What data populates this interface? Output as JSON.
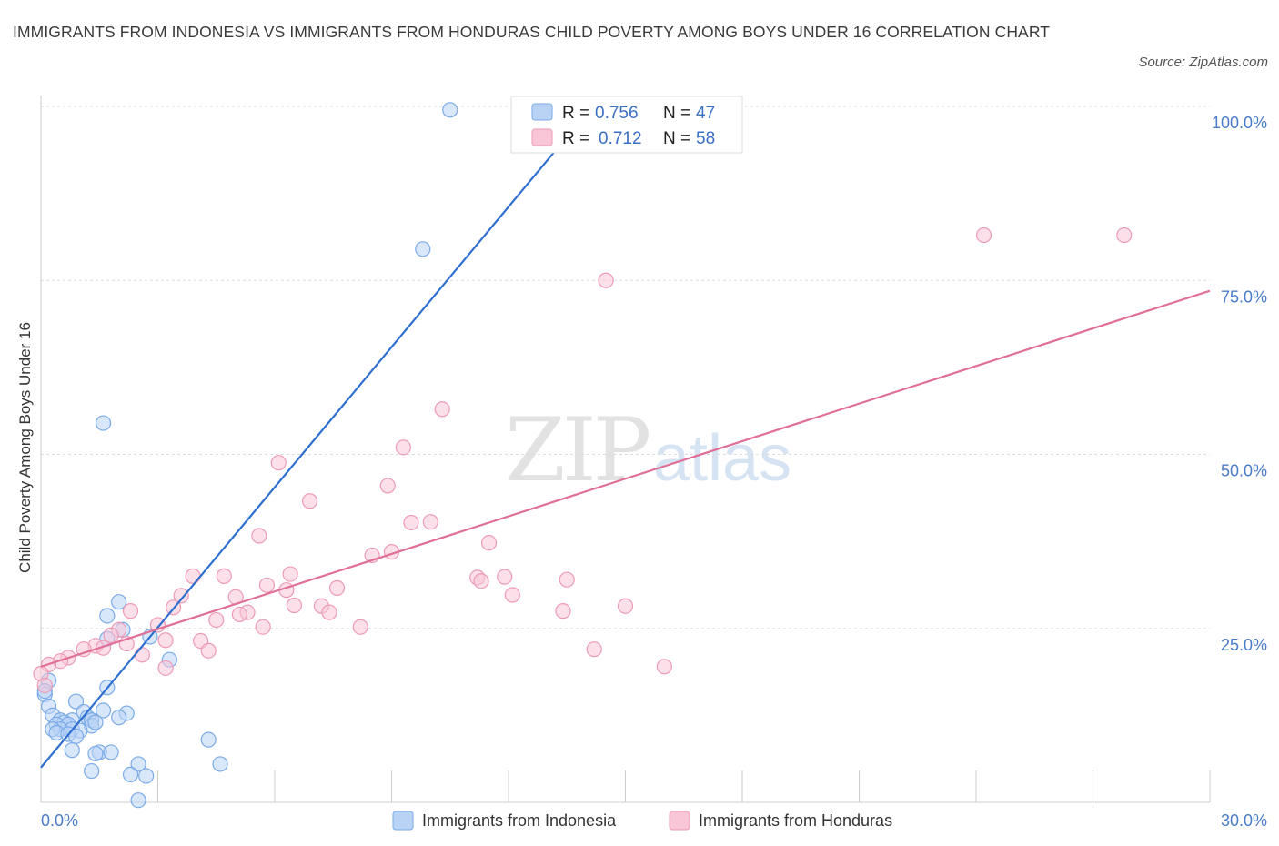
{
  "title": "IMMIGRANTS FROM INDONESIA VS IMMIGRANTS FROM HONDURAS CHILD POVERTY AMONG BOYS UNDER 16 CORRELATION CHART",
  "source": "Source: ZipAtlas.com",
  "watermark": {
    "zip": "ZIP",
    "atlas": "atlas"
  },
  "colors": {
    "indonesia": "#7aaae8",
    "indonesia_fill": "#b9d3f5",
    "indonesia_line": "#2f6fd0",
    "honduras": "#ee9ab8",
    "honduras_fill": "#f8c6d7",
    "honduras_line": "#e07098"
  },
  "legend": {
    "indonesia": {
      "r_label": "R = ",
      "r_value": "0.756",
      "n_label": "N = ",
      "n_value": "47"
    },
    "honduras": {
      "r_label": "R = ",
      "r_value": "0.712",
      "n_label": "N = ",
      "n_value": "58"
    }
  },
  "bottom_legend": {
    "indonesia": "Immigrants from Indonesia",
    "honduras": "Immigrants from Honduras"
  },
  "chart_data": {
    "type": "scatter",
    "ylabel": "Child Poverty Among Boys Under 16",
    "xlim": [
      0,
      30
    ],
    "ylim": [
      0,
      100
    ],
    "x_tick_labels": [
      "0.0%",
      "30.0%"
    ],
    "y_ticks": [
      25,
      50,
      75,
      100
    ],
    "y_tick_labels": [
      "25.0%",
      "50.0%",
      "75.0%",
      "100.0%"
    ],
    "grid": true,
    "legend_placement": "top-center",
    "series": [
      {
        "name": "Immigrants from Indonesia",
        "r": 0.756,
        "n": 47,
        "trend": {
          "x0": 0,
          "y0": 5.0,
          "x1": 14.0,
          "y1": 99.0
        },
        "points": [
          [
            10.5,
            99.5
          ],
          [
            9.8,
            79.5
          ],
          [
            1.6,
            54.5
          ],
          [
            2.0,
            28.8
          ],
          [
            1.7,
            26.8
          ],
          [
            2.1,
            24.8
          ],
          [
            1.7,
            23.5
          ],
          [
            2.8,
            23.8
          ],
          [
            3.3,
            20.5
          ],
          [
            0.2,
            17.5
          ],
          [
            1.7,
            16.5
          ],
          [
            0.1,
            15.5
          ],
          [
            0.2,
            13.8
          ],
          [
            0.9,
            14.5
          ],
          [
            1.6,
            13.2
          ],
          [
            1.1,
            13.0
          ],
          [
            2.2,
            12.8
          ],
          [
            0.3,
            12.5
          ],
          [
            1.2,
            12.2
          ],
          [
            0.8,
            11.8
          ],
          [
            0.5,
            11.8
          ],
          [
            0.6,
            11.5
          ],
          [
            0.4,
            11.2
          ],
          [
            0.7,
            11.2
          ],
          [
            1.3,
            11.8
          ],
          [
            2.0,
            12.2
          ],
          [
            1.3,
            11.0
          ],
          [
            0.5,
            10.5
          ],
          [
            0.8,
            10.5
          ],
          [
            1.0,
            10.3
          ],
          [
            0.3,
            10.5
          ],
          [
            0.4,
            10.0
          ],
          [
            1.4,
            11.5
          ],
          [
            0.7,
            9.8
          ],
          [
            0.9,
            9.5
          ],
          [
            4.3,
            9.0
          ],
          [
            0.8,
            7.5
          ],
          [
            1.5,
            7.2
          ],
          [
            1.8,
            7.2
          ],
          [
            1.4,
            7.0
          ],
          [
            2.5,
            5.5
          ],
          [
            4.6,
            5.5
          ],
          [
            1.3,
            4.5
          ],
          [
            2.3,
            4.0
          ],
          [
            2.7,
            3.8
          ],
          [
            2.5,
            0.3
          ],
          [
            0.1,
            16.0
          ]
        ]
      },
      {
        "name": "Immigrants from Honduras",
        "r": 0.712,
        "n": 58,
        "trend": {
          "x0": 0,
          "y0": 19.5,
          "x1": 30,
          "y1": 73.5
        },
        "points": [
          [
            24.2,
            81.5
          ],
          [
            27.8,
            81.5
          ],
          [
            14.5,
            75.0
          ],
          [
            10.3,
            56.5
          ],
          [
            9.3,
            51.0
          ],
          [
            6.1,
            48.8
          ],
          [
            8.9,
            45.5
          ],
          [
            6.9,
            43.3
          ],
          [
            9.5,
            40.2
          ],
          [
            10.0,
            40.3
          ],
          [
            5.6,
            38.3
          ],
          [
            11.5,
            37.3
          ],
          [
            9.0,
            36.0
          ],
          [
            8.5,
            35.5
          ],
          [
            3.9,
            32.5
          ],
          [
            4.7,
            32.5
          ],
          [
            6.4,
            32.8
          ],
          [
            11.2,
            32.3
          ],
          [
            11.3,
            31.8
          ],
          [
            11.9,
            32.4
          ],
          [
            13.5,
            32.0
          ],
          [
            5.8,
            31.2
          ],
          [
            7.6,
            30.8
          ],
          [
            6.3,
            30.5
          ],
          [
            12.1,
            29.8
          ],
          [
            3.6,
            29.7
          ],
          [
            5.0,
            29.5
          ],
          [
            6.5,
            28.3
          ],
          [
            7.2,
            28.2
          ],
          [
            7.4,
            27.3
          ],
          [
            3.4,
            28.0
          ],
          [
            2.3,
            27.5
          ],
          [
            5.3,
            27.3
          ],
          [
            5.1,
            27.0
          ],
          [
            13.4,
            27.5
          ],
          [
            15.0,
            28.2
          ],
          [
            4.5,
            26.2
          ],
          [
            3.0,
            25.5
          ],
          [
            5.7,
            25.2
          ],
          [
            8.2,
            25.2
          ],
          [
            2.0,
            24.8
          ],
          [
            1.8,
            24.0
          ],
          [
            3.2,
            23.3
          ],
          [
            4.1,
            23.2
          ],
          [
            2.2,
            22.8
          ],
          [
            1.4,
            22.5
          ],
          [
            1.6,
            22.2
          ],
          [
            1.1,
            22.0
          ],
          [
            4.3,
            21.8
          ],
          [
            2.6,
            21.2
          ],
          [
            0.7,
            20.8
          ],
          [
            0.5,
            20.3
          ],
          [
            0.2,
            19.8
          ],
          [
            3.2,
            19.3
          ],
          [
            14.2,
            22.0
          ],
          [
            16.0,
            19.5
          ],
          [
            0.0,
            18.5
          ],
          [
            0.1,
            16.8
          ]
        ]
      }
    ]
  }
}
